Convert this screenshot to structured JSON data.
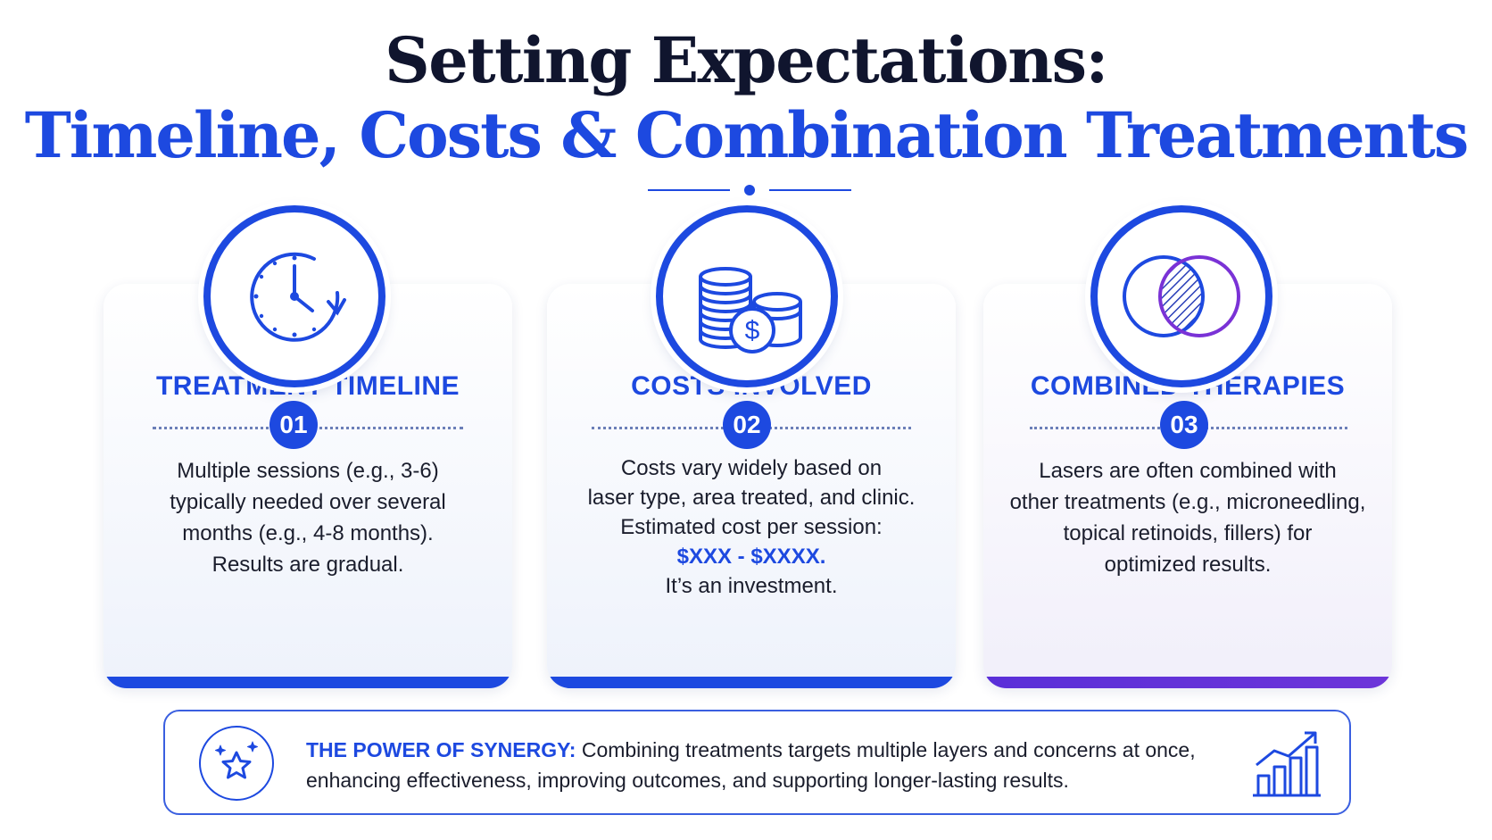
{
  "header": {
    "title_line1": "Setting Expectations:",
    "title_line2": "Timeline, Costs & Combination Treatments"
  },
  "cards": [
    {
      "number": "01",
      "title": "TREATMENT TIMELINE",
      "icon": "clock-icon",
      "body": [
        "Multiple sessions (e.g., 3-6)",
        "typically needed over several",
        "months (e.g., 4-8 months).",
        "Results are gradual."
      ]
    },
    {
      "number": "02",
      "title": "COSTS INVOLVED",
      "icon": "coins-dollar-icon",
      "body": [
        "Costs vary widely based on",
        "laser type, area treated, and clinic.",
        "Estimated cost per session:"
      ],
      "price": "$XXX - $XXXX.",
      "closing": "It’s an investment."
    },
    {
      "number": "03",
      "title": "COMBINED THERAPIES",
      "icon": "overlapping-circles-icon",
      "body": [
        "Lasers are often combined with",
        "other treatments (e.g., microneedling,",
        "topical retinoids, fillers) for",
        "optimized results."
      ]
    }
  ],
  "synergy": {
    "lead": "THE POWER OF SYNERGY:",
    "text": "Combining treatments targets multiple layers and concerns at once, enhancing effectiveness, improving outcomes, and supporting longer-lasting results.",
    "left_icon": "star-sparkle-icon",
    "right_icon": "growth-chart-icon"
  },
  "colors": {
    "primary": "#1d49e0",
    "title_dark": "#10152e",
    "purple_accent": "#6d35d9",
    "text": "#1a1d2c"
  }
}
